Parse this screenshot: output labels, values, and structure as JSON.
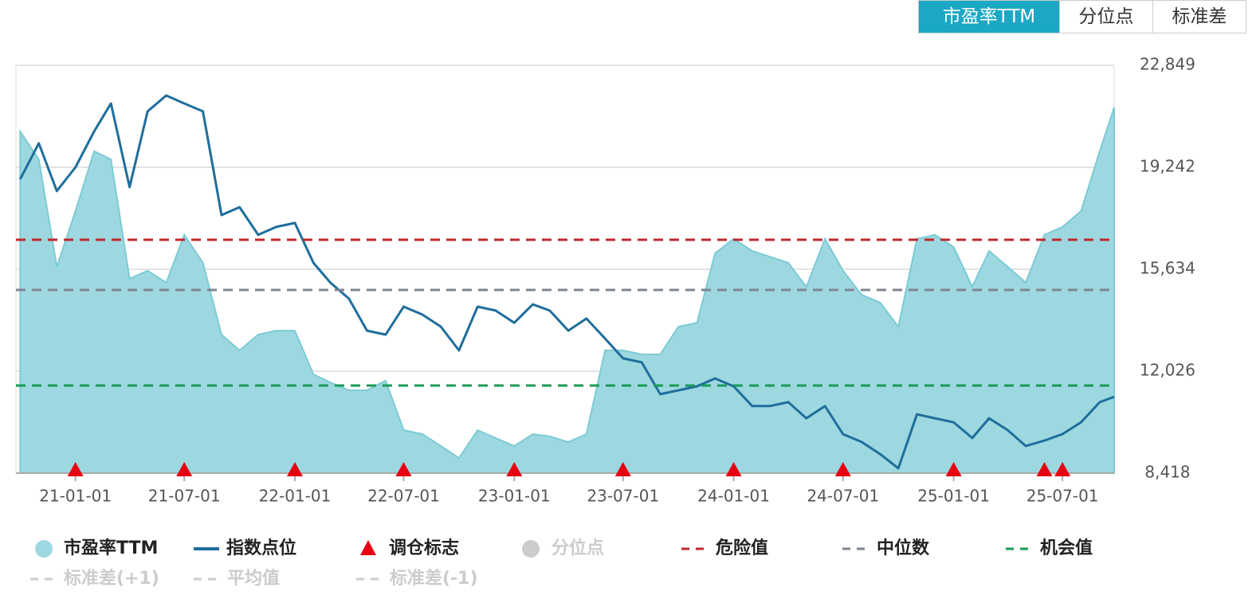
{
  "chart_data": {
    "type": "line",
    "tabs": [
      "市盈率TTM",
      "分位点",
      "标准差"
    ],
    "active_tab": 0,
    "active_color": "#1ba8c4",
    "x": [
      "20-10-01",
      "20-11-01",
      "20-12-01",
      "21-01-01",
      "21-02-01",
      "21-03-01",
      "21-04-01",
      "21-05-01",
      "21-06-01",
      "21-07-01",
      "21-08-01",
      "21-09-01",
      "21-10-01",
      "21-11-01",
      "21-12-01",
      "22-01-01",
      "22-02-01",
      "22-03-01",
      "22-04-01",
      "22-05-01",
      "22-06-01",
      "22-07-01",
      "22-08-01",
      "22-09-01",
      "22-10-01",
      "22-11-01",
      "22-12-01",
      "23-01-01",
      "23-02-01",
      "23-03-01",
      "23-04-01",
      "23-05-01",
      "23-06-01",
      "23-07-01",
      "23-08-01",
      "23-09-01",
      "23-10-01",
      "23-11-01",
      "23-12-01",
      "24-01-01",
      "24-02-01",
      "24-03-01",
      "24-04-01",
      "24-05-01",
      "24-06-01",
      "24-07-01",
      "24-08-01",
      "24-09-01",
      "24-10-01",
      "24-11-01",
      "24-12-01",
      "25-01-01",
      "25-02-01",
      "25-03-01",
      "25-04-01",
      "25-05-01",
      "25-06-01",
      "25-07-01",
      "25-08-01",
      "25-09-01",
      "25-09-25"
    ],
    "xlim": [
      "20-09-24",
      "25-09-25"
    ],
    "xticks": [
      "21-01-01",
      "21-07-01",
      "22-01-01",
      "22-07-01",
      "23-01-01",
      "23-07-01",
      "24-01-01",
      "24-07-01",
      "25-01-01",
      "25-07-01"
    ],
    "ylim": [
      8418,
      22849
    ],
    "yticks": [
      {
        "value": 8418,
        "label": "8,418"
      },
      {
        "value": 12026,
        "label": "12,026"
      },
      {
        "value": 15634,
        "label": "15,634"
      },
      {
        "value": 19242,
        "label": "19,242"
      },
      {
        "value": 22849,
        "label": "22,849"
      }
    ],
    "grid": true,
    "series": [
      {
        "name": "市盈率TTM",
        "color": "#9dd8e0",
        "style": "area",
        "values": [
          20510,
          19520,
          15720,
          17690,
          19810,
          19520,
          15300,
          15580,
          15160,
          16850,
          15860,
          13320,
          12760,
          13320,
          13460,
          13460,
          11910,
          11630,
          11350,
          11350,
          11690,
          9940,
          9800,
          9380,
          8950,
          9940,
          9660,
          9380,
          9800,
          9720,
          9520,
          9800,
          12760,
          12760,
          12620,
          12620,
          13600,
          13740,
          16200,
          16710,
          16280,
          16080,
          15860,
          15010,
          16710,
          15580,
          14730,
          14450,
          13600,
          16710,
          16850,
          16420,
          15010,
          16280,
          15720,
          15160,
          16850,
          17130,
          17690,
          19810,
          21360
        ]
      },
      {
        "name": "指数点位",
        "color": "#1f6e9c",
        "style": "line",
        "values": [
          18820,
          20090,
          18400,
          19240,
          20510,
          21500,
          18540,
          21220,
          21780,
          21500,
          21220,
          17550,
          17830,
          16850,
          17130,
          17270,
          15860,
          15160,
          14590,
          13460,
          13320,
          14310,
          14030,
          13600,
          12760,
          14310,
          14170,
          13740,
          14390,
          14170,
          13460,
          13890,
          13180,
          12480,
          12340,
          11210,
          11350,
          11490,
          11770,
          11490,
          10790,
          10790,
          10930,
          10360,
          10790,
          9800,
          9520,
          9090,
          8590,
          10500,
          10360,
          10220,
          9660,
          10360,
          9940,
          9380,
          9570,
          9800,
          10220,
          10930,
          11120
        ]
      }
    ],
    "rebalance": {
      "name": "调仓标志",
      "color": "#e60012",
      "x": [
        "21-01-01",
        "21-07-01",
        "22-01-01",
        "22-07-01",
        "23-01-01",
        "23-07-01",
        "24-01-01",
        "24-07-01",
        "25-01-01",
        "25-06-01",
        "25-07-01"
      ]
    },
    "reference_lines": [
      {
        "name": "危险值",
        "color": "#c0282d",
        "value": 16676
      },
      {
        "name": "中位数",
        "color": "#7f8690",
        "value": 14900
      },
      {
        "name": "机会值",
        "color": "#1a9a55",
        "value": 11518
      }
    ],
    "inactive_color": "#cccccc",
    "inactive_legend": [
      {
        "name": "分位点",
        "marker": "circle"
      },
      {
        "name": "标准差(+1)",
        "marker": "dash"
      },
      {
        "name": "平均值",
        "marker": "dash"
      },
      {
        "name": "标准差(-1)",
        "marker": "dash"
      }
    ]
  }
}
